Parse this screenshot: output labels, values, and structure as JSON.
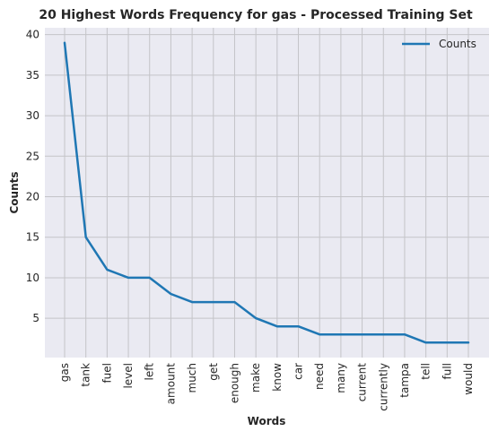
{
  "chart_data": {
    "type": "line",
    "title": "20 Highest Words Frequency for gas - Processed Training Set",
    "xlabel": "Words",
    "ylabel": "Counts",
    "categories": [
      "gas",
      "tank",
      "fuel",
      "level",
      "left",
      "amount",
      "much",
      "get",
      "enough",
      "make",
      "know",
      "car",
      "need",
      "many",
      "current",
      "currently",
      "tampa",
      "tell",
      "full",
      "would"
    ],
    "series": [
      {
        "name": "Counts",
        "values": [
          39,
          15,
          11,
          10,
          10,
          8,
          7,
          7,
          7,
          5,
          4,
          4,
          3,
          3,
          3,
          3,
          3,
          2,
          2,
          2
        ]
      }
    ],
    "yticks": [
      5,
      10,
      15,
      20,
      25,
      30,
      35,
      40
    ],
    "ylim": [
      0.15,
      40.85
    ],
    "grid": true,
    "legend": "top-right",
    "colors": {
      "line": "#1f77b4",
      "background": "#eaeaf2",
      "grid": "#c4c4c8"
    }
  }
}
